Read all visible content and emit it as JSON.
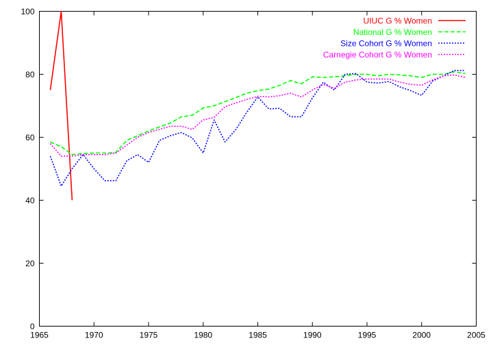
{
  "chart_data": {
    "type": "line",
    "title": "",
    "xlabel": "",
    "ylabel": "",
    "xlim": [
      1965,
      2005
    ],
    "ylim": [
      0,
      100
    ],
    "xticks": [
      1965,
      1970,
      1975,
      1980,
      1985,
      1990,
      1995,
      2000,
      2005
    ],
    "yticks": [
      0,
      20,
      40,
      60,
      80,
      100
    ],
    "grid": false,
    "legend_position": "top-right",
    "series": [
      {
        "name": "UIUC G % Women",
        "color": "#ff0000",
        "dash": "solid",
        "x": [
          1966,
          1967,
          1968
        ],
        "y": [
          75,
          100,
          40
        ]
      },
      {
        "name": "National G % Women",
        "color": "#00ff00",
        "dash": "dashed",
        "x": [
          1966,
          1967,
          1968,
          1969,
          1970,
          1971,
          1972,
          1973,
          1974,
          1975,
          1976,
          1977,
          1978,
          1979,
          1980,
          1981,
          1982,
          1983,
          1984,
          1985,
          1986,
          1987,
          1988,
          1989,
          1990,
          1991,
          1992,
          1993,
          1994,
          1995,
          1996,
          1997,
          1998,
          1999,
          2000,
          2001,
          2002,
          2003,
          2004
        ],
        "y": [
          58.5,
          57,
          54.5,
          54.8,
          55,
          55,
          55.2,
          59,
          60.5,
          62,
          63.3,
          64.5,
          66.5,
          67,
          69.3,
          70,
          71.3,
          72.6,
          74,
          74.8,
          75.3,
          76.5,
          78,
          77,
          79.2,
          79,
          79.2,
          79.5,
          80,
          80,
          79.5,
          80,
          79.8,
          79.5,
          79,
          80,
          80,
          80.8,
          80.2
        ]
      },
      {
        "name": "Size Cohort G % Women",
        "color": "#0000ff",
        "dash": "dotted",
        "x": [
          1966,
          1967,
          1968,
          1969,
          1970,
          1971,
          1972,
          1973,
          1974,
          1975,
          1976,
          1977,
          1978,
          1979,
          1980,
          1981,
          1982,
          1983,
          1984,
          1985,
          1986,
          1987,
          1988,
          1989,
          1990,
          1991,
          1992,
          1993,
          1994,
          1995,
          1996,
          1997,
          1998,
          1999,
          2000,
          2001,
          2002,
          2003,
          2004
        ],
        "y": [
          54,
          44.5,
          50,
          54.5,
          50,
          46.2,
          46.2,
          52.5,
          54.5,
          52,
          59,
          60.5,
          61.5,
          59.8,
          55,
          65.5,
          58.5,
          62.5,
          68,
          72.8,
          69,
          69.2,
          66.5,
          66.5,
          72.5,
          77.5,
          75,
          80,
          80.2,
          77.5,
          77.2,
          77.7,
          76,
          74.8,
          73.3,
          77.8,
          79.5,
          81.2,
          81.2
        ]
      },
      {
        "name": "Carnegie Cohort G % Women",
        "color": "#ff00ff",
        "dash": "dotted",
        "x": [
          1966,
          1967,
          1968,
          1969,
          1970,
          1971,
          1972,
          1973,
          1974,
          1975,
          1976,
          1977,
          1978,
          1979,
          1980,
          1981,
          1982,
          1983,
          1984,
          1985,
          1986,
          1987,
          1988,
          1989,
          1990,
          1991,
          1992,
          1993,
          1994,
          1995,
          1996,
          1997,
          1998,
          1999,
          2000,
          2001,
          2002,
          2003,
          2004
        ],
        "y": [
          58,
          54,
          54,
          54.5,
          54.5,
          54.5,
          55,
          57.5,
          60,
          61.5,
          62.5,
          63.5,
          63.5,
          62.5,
          65.5,
          66.3,
          69.7,
          70.9,
          72,
          73,
          72.8,
          73.2,
          74,
          72.8,
          75,
          76.8,
          75.5,
          77.5,
          78.2,
          78.5,
          78.5,
          78.5,
          77.5,
          76.8,
          76.5,
          78.2,
          79.5,
          79.8,
          79
        ]
      }
    ]
  }
}
